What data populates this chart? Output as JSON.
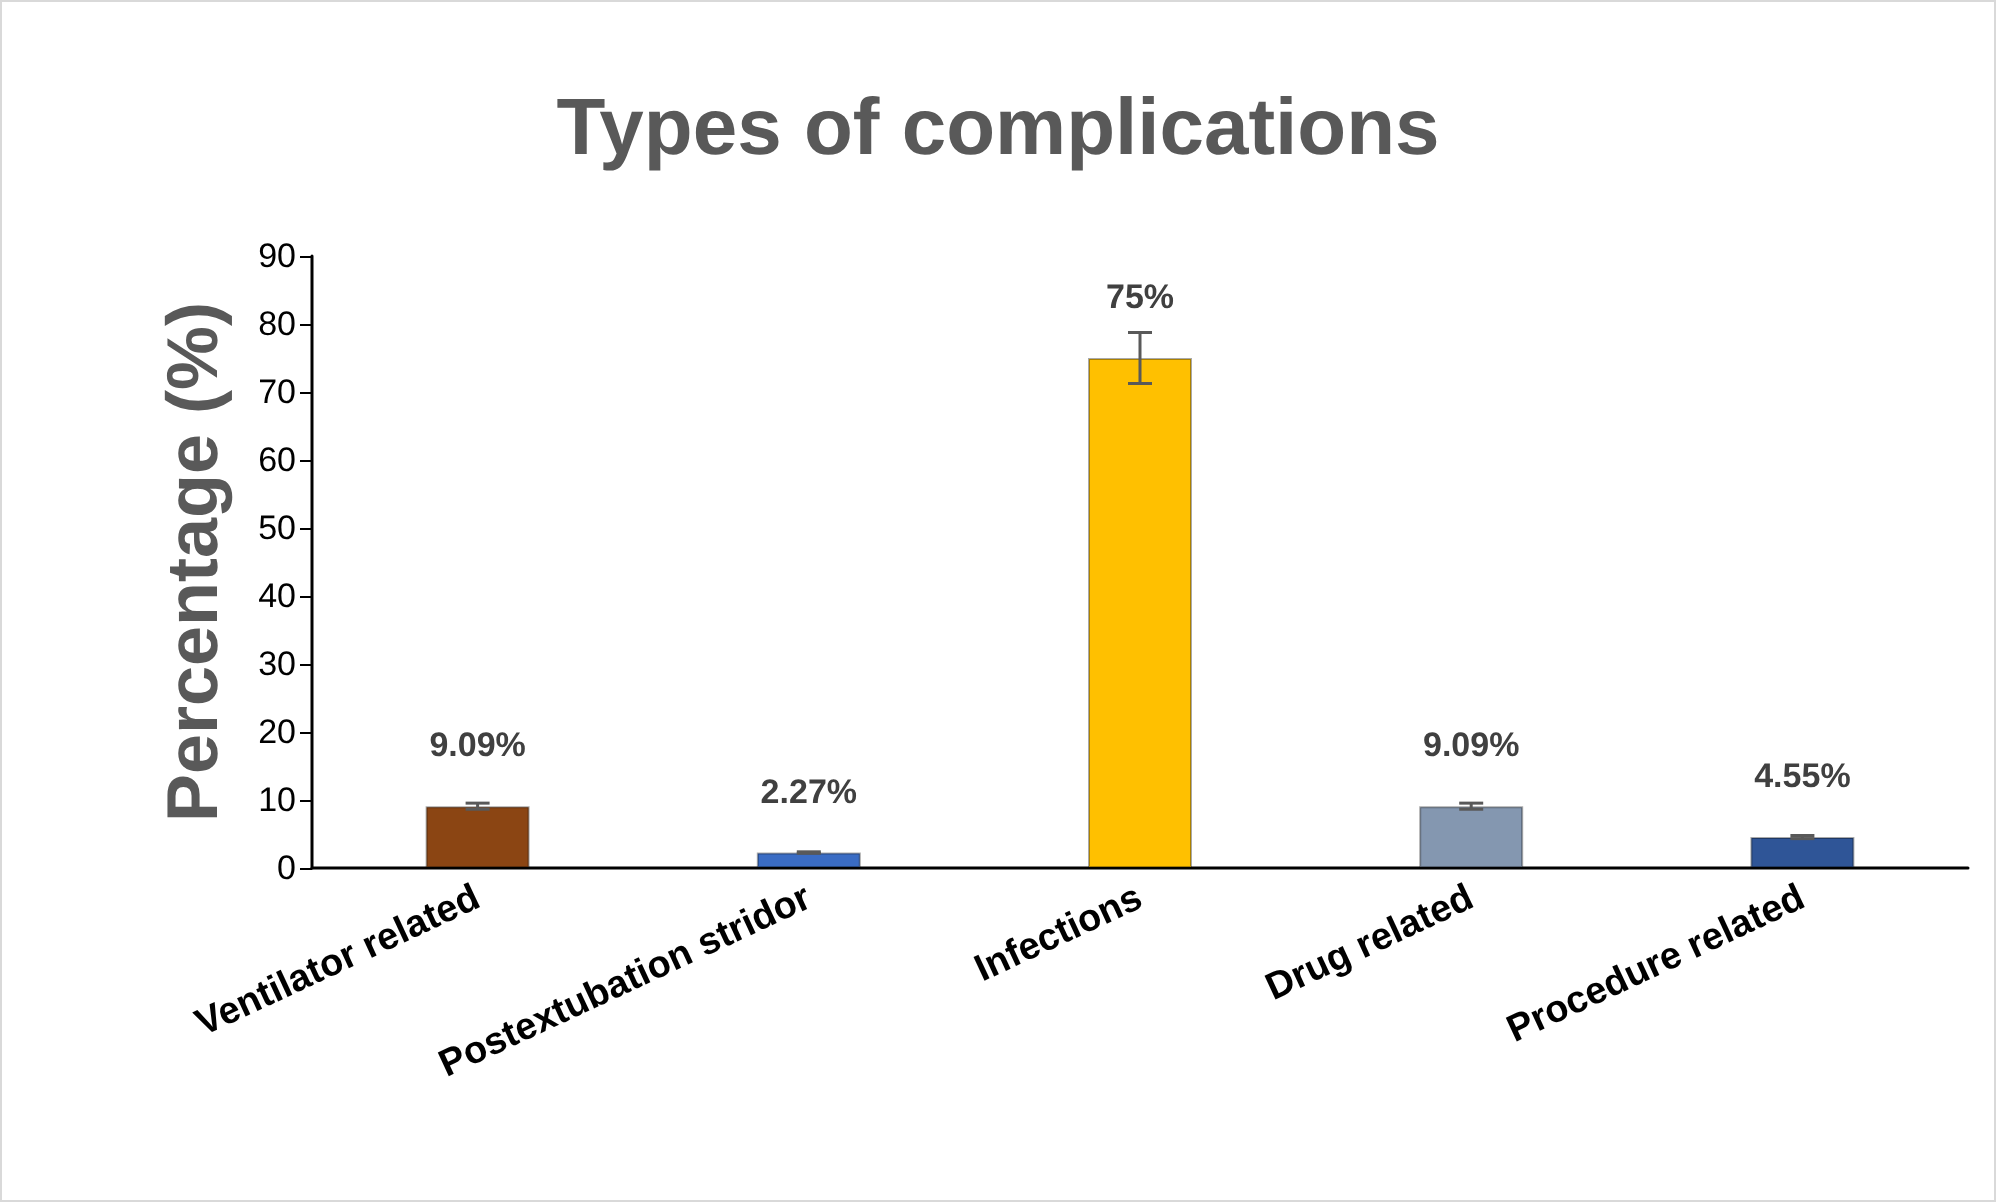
{
  "chart_data": {
    "type": "bar",
    "title": "Types of complications",
    "ylabel": "Percentage (%)",
    "categories": [
      "Ventilator related",
      "Postextubation stridor",
      "Infections",
      "Drug related",
      "Procedure related"
    ],
    "values": [
      9.09,
      2.27,
      75,
      9.09,
      4.55
    ],
    "colors": [
      "#8b4513",
      "#3a6cc4",
      "#ffc000",
      "#8497b0",
      "#2f5597"
    ],
    "value_labels": [
      "9.09%",
      "2.27%",
      "75%",
      "9.09%",
      "4.55%"
    ],
    "errors": [
      0.45,
      0.11,
      3.75,
      0.45,
      0.23
    ],
    "ylim": [
      0,
      90
    ],
    "yticks": [
      0,
      10,
      20,
      30,
      40,
      50,
      60,
      70,
      80,
      90
    ],
    "grid": false
  }
}
